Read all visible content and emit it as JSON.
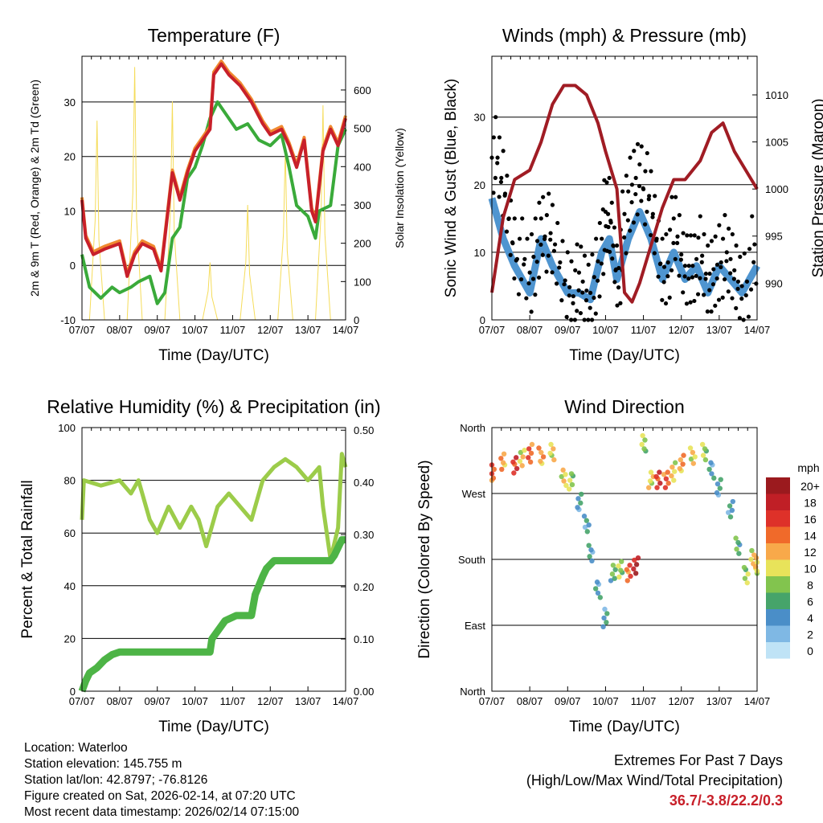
{
  "chart_data": [
    {
      "type": "line",
      "title": "Temperature (F)",
      "xlabel": "Time (Day/UTC)",
      "ylabel": "2m & 9m T (Red, Orange) & 2m Td (Green)",
      "y2label": "Solar Insolation (Yellow)",
      "x_ticks": [
        "07/07",
        "08/07",
        "09/07",
        "10/07",
        "11/07",
        "12/07",
        "13/07",
        "14/07"
      ],
      "y_ticks": [
        -10,
        0,
        10,
        20,
        30
      ],
      "y2_ticks": [
        0,
        100,
        200,
        300,
        400,
        500,
        600
      ],
      "xlim": [
        0,
        7
      ],
      "ylim": [
        -10,
        38.4
      ],
      "y2lim": [
        0,
        688
      ],
      "series": [
        {
          "name": "2m T",
          "color": "#c8202a",
          "axis": "left",
          "x": [
            0,
            0.1,
            0.3,
            0.6,
            1,
            1.2,
            1.4,
            1.6,
            1.9,
            2.1,
            2.2,
            2.4,
            2.6,
            2.8,
            3,
            3.2,
            3.4,
            3.5,
            3.7,
            3.9,
            4.2,
            4.5,
            4.8,
            5,
            5.3,
            5.5,
            5.7,
            5.9,
            6.1,
            6.2,
            6.4,
            6.6,
            6.8,
            7
          ],
          "y": [
            12,
            5,
            2,
            3,
            4,
            -2,
            2,
            4,
            3,
            -1,
            5,
            17,
            12,
            17,
            21,
            23,
            25,
            35,
            37,
            35,
            33,
            30,
            26,
            24,
            25,
            22,
            18,
            23,
            10,
            8,
            21,
            25,
            22,
            27
          ]
        },
        {
          "name": "9m T",
          "color": "#f08a30",
          "axis": "left",
          "x": [
            0,
            0.1,
            0.3,
            0.6,
            1,
            1.2,
            1.4,
            1.6,
            1.9,
            2.1,
            2.2,
            2.4,
            2.6,
            2.8,
            3,
            3.2,
            3.4,
            3.5,
            3.7,
            3.9,
            4.2,
            4.5,
            4.8,
            5,
            5.3,
            5.5,
            5.7,
            5.9,
            6.1,
            6.2,
            6.4,
            6.6,
            6.8,
            7
          ],
          "y": [
            12.5,
            5.5,
            2.5,
            3.5,
            4.5,
            -1.5,
            2.5,
            4.5,
            3.5,
            -0.5,
            5.5,
            17.5,
            12.5,
            17.5,
            21.5,
            23.5,
            25.5,
            35.5,
            37.5,
            35.5,
            33.5,
            30.5,
            26.5,
            24.5,
            25.5,
            22.5,
            18.5,
            23.5,
            10.5,
            8.5,
            21.5,
            25.5,
            22.5,
            27.5
          ]
        },
        {
          "name": "2m Td",
          "color": "#3aaa3a",
          "axis": "left",
          "x": [
            0,
            0.2,
            0.5,
            0.8,
            1,
            1.3,
            1.5,
            1.8,
            2,
            2.2,
            2.4,
            2.6,
            2.8,
            3,
            3.2,
            3.4,
            3.6,
            3.8,
            4.1,
            4.4,
            4.7,
            5,
            5.3,
            5.5,
            5.7,
            6,
            6.2,
            6.3,
            6.6,
            6.8,
            7
          ],
          "y": [
            2,
            -4,
            -6,
            -4,
            -5,
            -4,
            -3,
            -2,
            -7,
            -5,
            5,
            7,
            16,
            18,
            22,
            27,
            30,
            28,
            25,
            26,
            23,
            22,
            24,
            18,
            11,
            9,
            5,
            10,
            11,
            22,
            25
          ]
        },
        {
          "name": "Solar Insolation",
          "color": "#f5dc5a",
          "axis": "right",
          "peak_day_fraction": 0.4,
          "daily_peaks": [
            520,
            660,
            570,
            150,
            300,
            450,
            560
          ]
        }
      ]
    },
    {
      "type": "scatter",
      "title": "Winds (mph) & Pressure (mb)",
      "xlabel": "Time (Day/UTC)",
      "ylabel": "Sonic Wind & Gust (Blue, Black)",
      "y2label": "Station Pressure (Maroon)",
      "x_ticks": [
        "07/07",
        "08/07",
        "09/07",
        "10/07",
        "11/07",
        "12/07",
        "13/07",
        "14/07"
      ],
      "y_ticks": [
        0,
        10,
        20,
        30
      ],
      "y2_ticks": [
        990,
        995,
        1000,
        1005,
        1010
      ],
      "xlim": [
        0,
        7
      ],
      "ylim": [
        0,
        39
      ],
      "y2lim": [
        986.1,
        1014.1
      ],
      "series": [
        {
          "name": "Sonic Wind",
          "color": "#4f95d0",
          "x": [
            0,
            0.3,
            0.6,
            1,
            1.3,
            1.6,
            2,
            2.3,
            2.6,
            2.9,
            3.1,
            3.3,
            3.6,
            3.9,
            4.2,
            4.5,
            4.8,
            5.1,
            5.4,
            5.7,
            6,
            6.3,
            6.6,
            7
          ],
          "y": [
            18,
            12,
            8,
            4,
            12,
            8,
            4,
            4,
            3,
            10,
            12,
            6,
            12,
            16,
            12,
            6,
            10,
            6,
            8,
            4,
            8,
            6,
            4,
            8
          ]
        },
        {
          "name": "Gust",
          "color": "#000000",
          "x": [
            0,
            0.3,
            0.6,
            1,
            1.3,
            1.6,
            2,
            2.3,
            2.6,
            2.9,
            3.1,
            3.3,
            3.6,
            3.9,
            4.2,
            4.5,
            4.8,
            5.1,
            5.4,
            5.7,
            6,
            6.3,
            6.6,
            7
          ],
          "y": [
            28,
            22,
            14,
            8,
            18,
            13,
            8,
            7,
            6,
            16,
            18,
            10,
            20,
            26,
            18,
            10,
            15,
            10,
            13,
            8,
            13,
            10,
            8,
            13
          ]
        },
        {
          "name": "Station Pressure",
          "color": "#a01c24",
          "axis": "right",
          "x": [
            0,
            0.3,
            0.6,
            1,
            1.3,
            1.6,
            1.9,
            2.2,
            2.5,
            2.8,
            3,
            3.3,
            3.5,
            3.7,
            3.9,
            4.2,
            4.5,
            4.8,
            5.1,
            5.5,
            5.8,
            6.1,
            6.4,
            6.7,
            7
          ],
          "y": [
            989,
            997,
            1001,
            1002,
            1005,
            1009,
            1011,
            1011,
            1010,
            1007,
            1004,
            1000,
            989,
            988,
            990,
            994,
            998,
            1001,
            1001,
            1003,
            1006,
            1007,
            1004,
            1002,
            1000
          ]
        }
      ]
    },
    {
      "type": "line",
      "title": "Relative Humidity (%) & Precipitation (in)",
      "xlabel": "Time (Day/UTC)",
      "ylabel": "Percent & Total Rainfall",
      "x_ticks": [
        "07/07",
        "08/07",
        "09/07",
        "10/07",
        "11/07",
        "12/07",
        "13/07",
        "14/07"
      ],
      "y_ticks": [
        0,
        20,
        40,
        60,
        80,
        100
      ],
      "y2_ticks": [
        "0.00",
        "0.10",
        "0.20",
        "0.30",
        "0.40",
        "0.50"
      ],
      "xlim": [
        0,
        7
      ],
      "ylim": [
        0,
        100
      ],
      "y2lim": [
        0,
        0.505
      ],
      "series": [
        {
          "name": "Relative Humidity",
          "color": "#9ccc4a",
          "x": [
            0,
            0.05,
            0.5,
            1,
            1.3,
            1.5,
            1.8,
            2,
            2.3,
            2.6,
            2.9,
            3.1,
            3.3,
            3.6,
            3.9,
            4.2,
            4.5,
            4.8,
            5.1,
            5.4,
            5.7,
            6,
            6.3,
            6.4,
            6.6,
            6.8,
            6.9,
            7
          ],
          "y": [
            65,
            80,
            78,
            80,
            75,
            80,
            65,
            60,
            70,
            62,
            70,
            65,
            55,
            70,
            75,
            70,
            65,
            80,
            85,
            88,
            85,
            80,
            85,
            70,
            50,
            62,
            90,
            85
          ]
        },
        {
          "name": "Total Precipitation",
          "color": "#4db446",
          "axis": "right",
          "x": [
            0,
            0.1,
            0.2,
            0.4,
            0.6,
            0.8,
            1,
            3.4,
            3.45,
            3.6,
            3.8,
            4.1,
            4.5,
            4.6,
            4.8,
            4.9,
            5.1,
            6.6,
            6.7,
            6.9,
            7
          ],
          "y": [
            0,
            0.02,
            0.035,
            0.045,
            0.06,
            0.07,
            0.075,
            0.075,
            0.1,
            0.115,
            0.135,
            0.145,
            0.145,
            0.185,
            0.22,
            0.235,
            0.25,
            0.25,
            0.26,
            0.29,
            0.29
          ]
        }
      ]
    },
    {
      "type": "scatter",
      "title": "Wind Direction",
      "xlabel": "Time (Day/UTC)",
      "ylabel": "Direction (Colored By Speed)",
      "x_ticks": [
        "07/07",
        "08/07",
        "09/07",
        "10/07",
        "11/07",
        "12/07",
        "13/07",
        "14/07"
      ],
      "y_ticks": [
        {
          "value": 0,
          "label": "North"
        },
        {
          "value": 90,
          "label": "East"
        },
        {
          "value": 180,
          "label": "South"
        },
        {
          "value": 270,
          "label": "West"
        },
        {
          "value": 360,
          "label": "North"
        }
      ],
      "xlim": [
        0,
        7
      ],
      "ylim": [
        0,
        360
      ],
      "points": {
        "t": [
          0,
          0.3,
          0.6,
          0.8,
          1.0,
          1.3,
          1.6,
          1.9,
          2.1,
          2.3,
          2.5,
          2.6,
          2.8,
          3.0,
          3.2,
          3.4,
          3.6,
          3.8,
          4.0,
          4.2,
          4.4,
          4.6,
          4.8,
          5.0,
          5.3,
          5.6,
          5.8,
          6.0,
          6.3,
          6.5,
          6.7,
          6.9,
          7.0
        ],
        "dir": [
          300,
          315,
          310,
          320,
          325,
          320,
          325,
          290,
          285,
          260,
          230,
          190,
          140,
          100,
          160,
          165,
          160,
          170,
          340,
          290,
          290,
          290,
          300,
          310,
          320,
          325,
          300,
          280,
          250,
          200,
          160,
          180,
          170
        ],
        "speed": [
          14,
          12,
          16,
          10,
          14,
          12,
          10,
          10,
          8,
          4,
          4,
          4,
          4,
          4,
          6,
          8,
          14,
          18,
          8,
          10,
          16,
          14,
          10,
          12,
          10,
          8,
          4,
          4,
          4,
          6,
          8,
          10,
          10
        ]
      },
      "legend": {
        "title": "mph",
        "placement": "right",
        "labels": [
          "20+",
          "18",
          "16",
          "14",
          "12",
          "10",
          "8",
          "6",
          "4",
          "2",
          "0"
        ],
        "colors": [
          "#9b1a1e",
          "#c01f26",
          "#de3129",
          "#f06a2a",
          "#f8a94a",
          "#e8e35a",
          "#82c44e",
          "#46a46a",
          "#4a8ec8",
          "#7fb8e4",
          "#bfe3f6"
        ]
      }
    }
  ],
  "info": {
    "location": "Location: Waterloo",
    "elevation": "Station elevation: 145.755 m",
    "latlon": "Station lat/lon: 42.8797; -76.8126",
    "created": "Figure created on Sat, 2026-02-14, at 07:20 UTC",
    "recent": "Most recent data timestamp: 2026/02/14 07:15:00"
  },
  "extremes": {
    "title": "Extremes For Past 7 Days",
    "subtitle": "(High/Low/Max Wind/Total Precipitation)",
    "values": "36.7/-3.8/22.2/0.3"
  }
}
